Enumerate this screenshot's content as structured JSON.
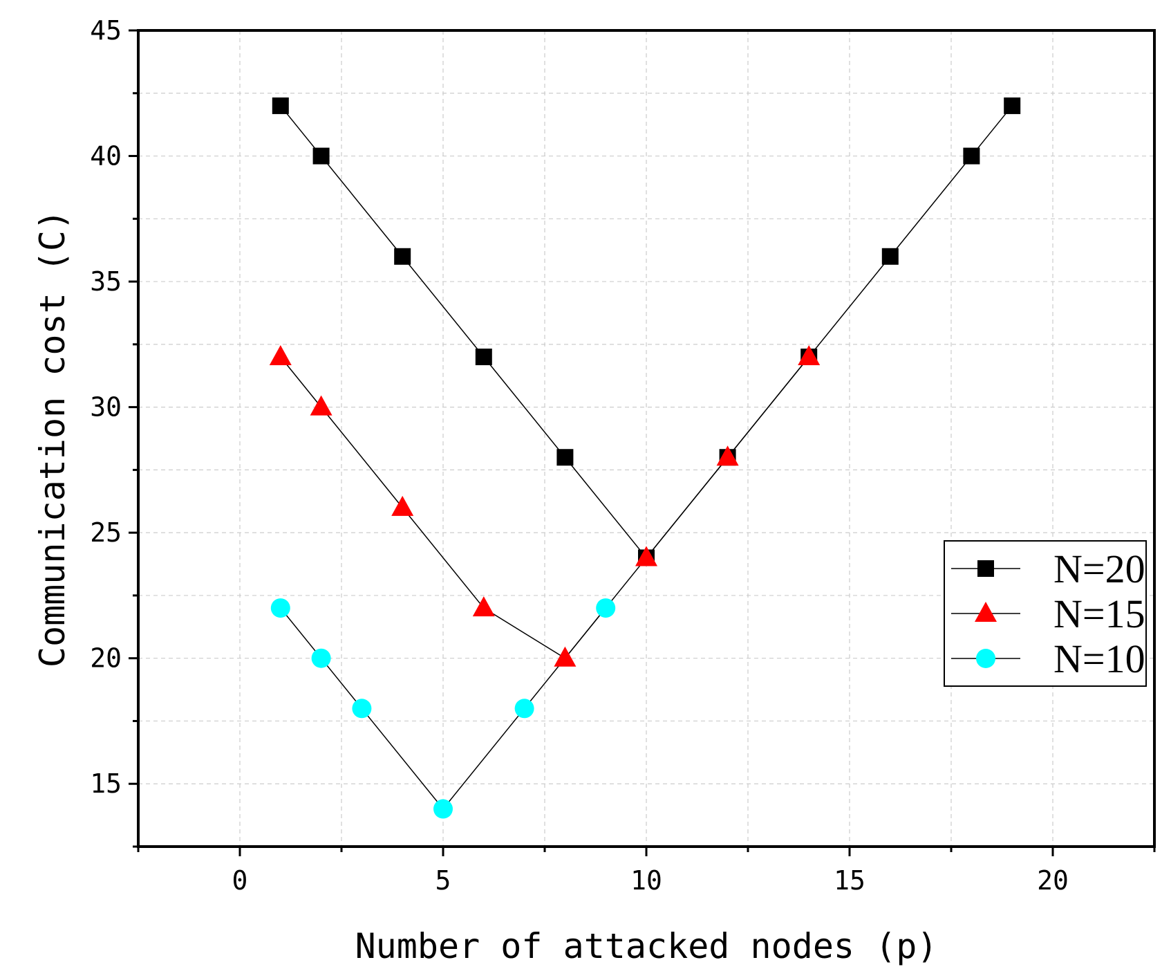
{
  "chart_data": {
    "type": "line",
    "title": "",
    "xlabel": "Number of attacked nodes (p)",
    "ylabel": "Communication cost (C)",
    "xlim": [
      -2.5,
      22.5
    ],
    "ylim": [
      12.5,
      45
    ],
    "xticks": [
      0,
      5,
      10,
      15,
      20
    ],
    "yticks": [
      15,
      20,
      25,
      30,
      35,
      40,
      45
    ],
    "grid": true,
    "legend_position": "right",
    "series": [
      {
        "name": "N=20",
        "marker": "square",
        "color": "#000000",
        "x": [
          1,
          2,
          4,
          6,
          8,
          10,
          12,
          14,
          16,
          18,
          19
        ],
        "y": [
          42,
          40,
          36,
          32,
          28,
          24,
          28,
          32,
          36,
          40,
          42
        ]
      },
      {
        "name": "N=15",
        "marker": "triangle",
        "color": "#ff0000",
        "x": [
          1,
          2,
          4,
          6,
          8,
          10,
          12,
          14
        ],
        "y": [
          32,
          30,
          26,
          22,
          20,
          24,
          28,
          32
        ]
      },
      {
        "name": "N=10",
        "marker": "circle",
        "color": "#00ffff",
        "x": [
          1,
          2,
          3,
          5,
          7,
          9
        ],
        "y": [
          22,
          20,
          18,
          14,
          18,
          22
        ]
      }
    ]
  }
}
